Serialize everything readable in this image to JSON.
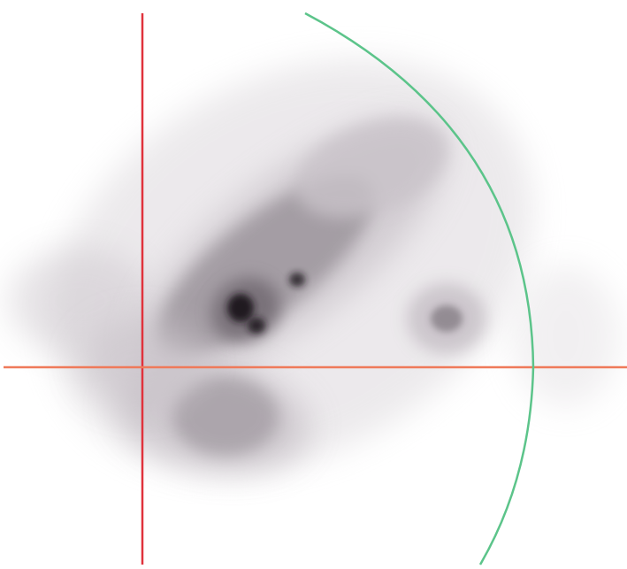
{
  "image": {
    "kind": "grayscale pixel density map with overlaid crosshair and arc",
    "colors": {
      "background": "#ffffff",
      "density_dark": "#1a141a",
      "density_mid": "#6e666e",
      "density_light": "#c9c3c9",
      "vertical_line": "#e0323c",
      "horizontal_line": "#ef7a5a",
      "arc": "#5cc48a"
    }
  }
}
